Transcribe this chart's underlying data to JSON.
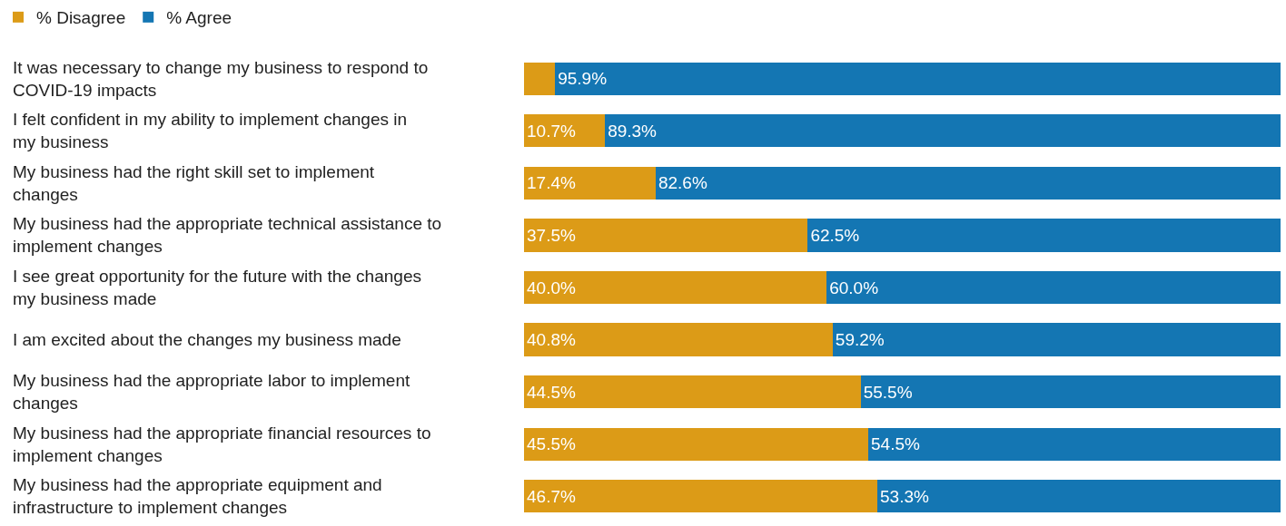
{
  "chart_data": {
    "type": "bar",
    "orientation": "horizontal",
    "stacked": true,
    "xlim": [
      0,
      100
    ],
    "tick_labels": "y",
    "legend": "top left",
    "categories": [
      "It was necessary to change my business to respond to COVID-19 impacts",
      "I felt confident in my ability to implement changes in my business",
      "My business had the right skill set to implement changes",
      "My business had the appropriate technical assistance to implement changes",
      "I see great opportunity for the future with the changes my business made",
      "I am excited about the changes my business made",
      "My business had the appropriate labor to implement changes",
      "My business had the appropriate financial resources to implement changes",
      "My business had the appropriate equipment and infrastructure to implement changes"
    ],
    "series": [
      {
        "name": "% Disagree",
        "color": "#dc9b17",
        "values": [
          4.1,
          10.7,
          17.4,
          37.5,
          40.0,
          40.8,
          44.5,
          45.5,
          46.7
        ],
        "value_labels": [
          null,
          "10.7%",
          "17.4%",
          "37.5%",
          "40.0%",
          "40.8%",
          "44.5%",
          "45.5%",
          "46.7%"
        ]
      },
      {
        "name": "% Agree",
        "color": "#1476b3",
        "values": [
          95.9,
          89.3,
          82.6,
          62.5,
          60.0,
          59.2,
          55.5,
          54.5,
          53.3
        ],
        "value_labels": [
          "95.9%",
          "89.3%",
          "82.6%",
          "62.5%",
          "60.0%",
          "59.2%",
          "55.5%",
          "54.5%",
          "53.3%"
        ]
      }
    ]
  }
}
